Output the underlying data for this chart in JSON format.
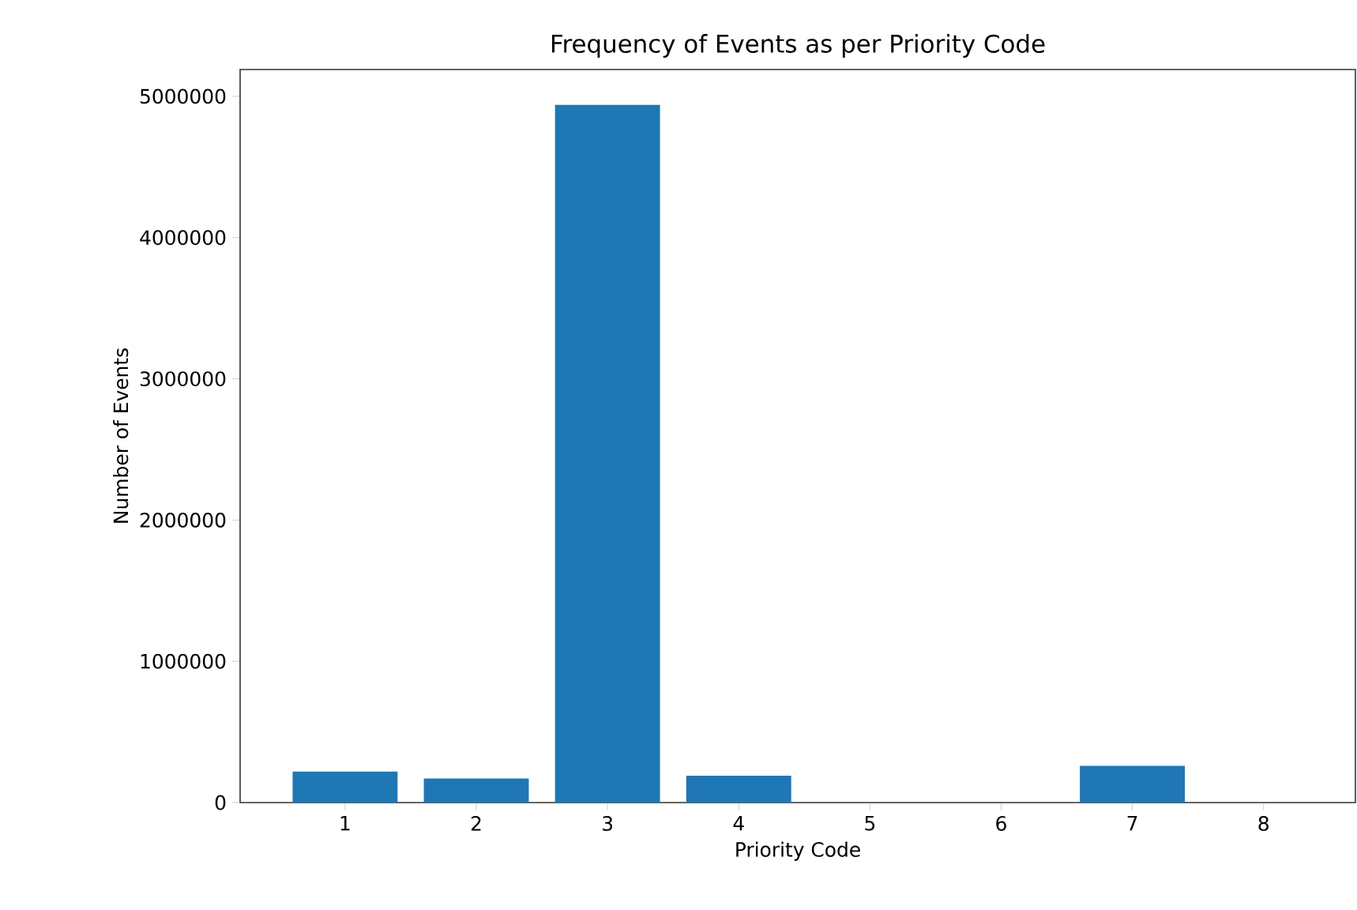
{
  "chart_data": {
    "type": "bar",
    "title": "Frequency of Events as per Priority Code",
    "xlabel": "Priority Code",
    "ylabel": "Number of Events",
    "x": [
      1,
      2,
      3,
      4,
      5,
      6,
      7,
      8
    ],
    "values": [
      220000,
      170000,
      4940000,
      190000,
      0,
      0,
      260000,
      0
    ],
    "color": "#1f77b4",
    "xlim": [
      0.2,
      8.7
    ],
    "xticks": [
      1,
      2,
      3,
      4,
      5,
      6,
      7,
      8
    ],
    "ylim": [
      0,
      5190000
    ],
    "yticks": [
      0,
      1000000,
      2000000,
      3000000,
      4000000,
      5000000
    ]
  }
}
